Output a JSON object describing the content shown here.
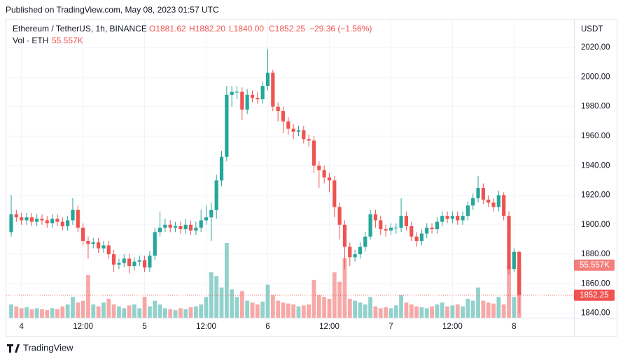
{
  "published": "Published on TradingView.com, May 08, 2023 01:57 UTC",
  "brand": "TradingView",
  "chart_data": {
    "type": "candlestick",
    "legend": {
      "symbol": "Ethereum / TetherUS, 1h, BINANCE",
      "open": "O1881.62",
      "high": "H1882.20",
      "low": "L1840.00",
      "close": "C1852.25",
      "change": "−29.36 (−1.56%)",
      "volume_name": "Vol · ETH",
      "volume_last": "55.557K"
    },
    "currency": "USDT",
    "up_color": "#26a69a",
    "down_color": "#ef5350",
    "grid": true,
    "ylim": [
      1837,
      2039
    ],
    "yticks": [
      {
        "value": 1840,
        "label": "1840.00"
      },
      {
        "value": 1860,
        "label": "1860.00"
      },
      {
        "value": 1880,
        "label": "1880.00"
      },
      {
        "value": 1900,
        "label": "1900.00"
      },
      {
        "value": 1920,
        "label": "1920.00"
      },
      {
        "value": 1940,
        "label": "1940.00"
      },
      {
        "value": 1960,
        "label": "1960.00"
      },
      {
        "value": 1980,
        "label": "1980.00"
      },
      {
        "value": 2000,
        "label": "2000.00"
      },
      {
        "value": 2020,
        "label": "2020.00"
      }
    ],
    "xticks": [
      {
        "value": 2,
        "label": "4"
      },
      {
        "value": 14,
        "label": "12:00"
      },
      {
        "value": 26,
        "label": "5"
      },
      {
        "value": 38,
        "label": "12:00"
      },
      {
        "value": 50,
        "label": "6"
      },
      {
        "value": 62,
        "label": "12:00"
      },
      {
        "value": 74,
        "label": "7"
      },
      {
        "value": 86,
        "label": "12:00"
      },
      {
        "value": 98,
        "label": "8"
      }
    ],
    "open": [
      1895,
      1907,
      1905,
      1903,
      1905,
      1902,
      1904,
      1903,
      1901,
      1904,
      1902,
      1899,
      1903,
      1910,
      1898,
      1889,
      1887,
      1888,
      1884,
      1886,
      1880,
      1873,
      1874,
      1877,
      1872,
      1875,
      1876,
      1871,
      1879,
      1895,
      1898,
      1900,
      1898,
      1899,
      1897,
      1900,
      1896,
      1898,
      1903,
      1905,
      1910,
      1930,
      1946,
      1988,
      1990,
      1990,
      1978,
      1988,
      1986,
      1985,
      1994,
      2003,
      1980,
      1977,
      1970,
      1965,
      1963,
      1964,
      1958,
      1957,
      1940,
      1937,
      1932,
      1930,
      1912,
      1900,
      1885,
      1878,
      1880,
      1885,
      1892,
      1907,
      1903,
      1897,
      1896,
      1898,
      1898,
      1906,
      1899,
      1892,
      1889,
      1894,
      1898,
      1897,
      1902,
      1906,
      1904,
      1906,
      1903,
      1906,
      1913,
      1918,
      1925,
      1917,
      1915,
      1912,
      1920,
      1906,
      1870,
      1881.62
    ],
    "high": [
      1920,
      1910,
      1908,
      1908,
      1908,
      1907,
      1907,
      1906,
      1907,
      1907,
      1905,
      1906,
      1918,
      1913,
      1901,
      1892,
      1891,
      1891,
      1889,
      1889,
      1883,
      1877,
      1880,
      1880,
      1878,
      1879,
      1879,
      1882,
      1898,
      1909,
      1904,
      1903,
      1902,
      1902,
      1904,
      1903,
      1902,
      1910,
      1913,
      1915,
      1934,
      1950,
      1994,
      1994,
      1994,
      1993,
      1992,
      1991,
      1990,
      1997,
      2019,
      2005,
      1983,
      1980,
      1973,
      1968,
      1967,
      1967,
      1961,
      1960,
      1943,
      1940,
      1935,
      1933,
      1915,
      1903,
      1888,
      1883,
      1888,
      1895,
      1910,
      1910,
      1906,
      1900,
      1901,
      1901,
      1918,
      1909,
      1902,
      1895,
      1897,
      1901,
      1901,
      1905,
      1909,
      1909,
      1909,
      1909,
      1909,
      1916,
      1921,
      1933,
      1928,
      1920,
      1918,
      1923,
      1922,
      1909,
      1884,
      1882.2
    ],
    "low": [
      1892,
      1902,
      1900,
      1900,
      1899,
      1899,
      1900,
      1898,
      1898,
      1899,
      1896,
      1896,
      1900,
      1895,
      1886,
      1877,
      1884,
      1881,
      1881,
      1877,
      1868,
      1870,
      1871,
      1867,
      1869,
      1872,
      1868,
      1868,
      1876,
      1892,
      1895,
      1895,
      1895,
      1894,
      1894,
      1893,
      1893,
      1895,
      1900,
      1889,
      1904,
      1926,
      1943,
      1980,
      1985,
      1971,
      1975,
      1983,
      1982,
      1982,
      1991,
      1977,
      1970,
      1962,
      1961,
      1958,
      1960,
      1955,
      1953,
      1935,
      1925,
      1928,
      1922,
      1905,
      1890,
      1870,
      1872,
      1875,
      1877,
      1882,
      1890,
      1898,
      1893,
      1892,
      1893,
      1894,
      1895,
      1896,
      1889,
      1885,
      1886,
      1891,
      1894,
      1894,
      1899,
      1901,
      1901,
      1900,
      1900,
      1903,
      1910,
      1915,
      1914,
      1912,
      1909,
      1909,
      1903,
      1866,
      1868,
      1840
    ],
    "close": [
      1907,
      1905,
      1903,
      1905,
      1902,
      1904,
      1903,
      1901,
      1904,
      1902,
      1899,
      1903,
      1910,
      1898,
      1889,
      1887,
      1888,
      1884,
      1886,
      1880,
      1873,
      1874,
      1877,
      1872,
      1875,
      1876,
      1871,
      1879,
      1895,
      1898,
      1900,
      1898,
      1899,
      1897,
      1900,
      1896,
      1898,
      1903,
      1905,
      1910,
      1930,
      1946,
      1988,
      1990,
      1990,
      1978,
      1988,
      1986,
      1985,
      1994,
      2003,
      1980,
      1977,
      1970,
      1965,
      1963,
      1964,
      1958,
      1957,
      1940,
      1937,
      1932,
      1930,
      1912,
      1900,
      1885,
      1878,
      1880,
      1885,
      1892,
      1907,
      1903,
      1897,
      1896,
      1898,
      1898,
      1906,
      1899,
      1892,
      1889,
      1894,
      1898,
      1897,
      1902,
      1906,
      1904,
      1906,
      1903,
      1906,
      1913,
      1918,
      1925,
      1917,
      1915,
      1912,
      1920,
      1906,
      1870,
      1881.62,
      1852.25
    ],
    "volume": [
      14,
      12,
      10,
      11,
      9,
      10,
      9,
      8,
      10,
      9,
      12,
      14,
      22,
      16,
      18,
      45,
      14,
      12,
      16,
      20,
      14,
      12,
      10,
      13,
      14,
      10,
      22,
      12,
      18,
      14,
      10,
      9,
      8,
      10,
      9,
      11,
      12,
      14,
      22,
      48,
      44,
      32,
      79,
      30,
      22,
      28,
      18,
      16,
      14,
      17,
      35,
      24,
      18,
      16,
      15,
      14,
      12,
      13,
      14,
      40,
      24,
      22,
      20,
      48,
      38,
      63,
      20,
      18,
      16,
      14,
      22,
      12,
      10,
      11,
      10,
      13,
      24,
      16,
      14,
      12,
      11,
      10,
      12,
      14,
      16,
      12,
      13,
      14,
      12,
      20,
      18,
      32,
      18,
      16,
      15,
      22,
      14,
      55,
      22,
      55.557
    ]
  }
}
